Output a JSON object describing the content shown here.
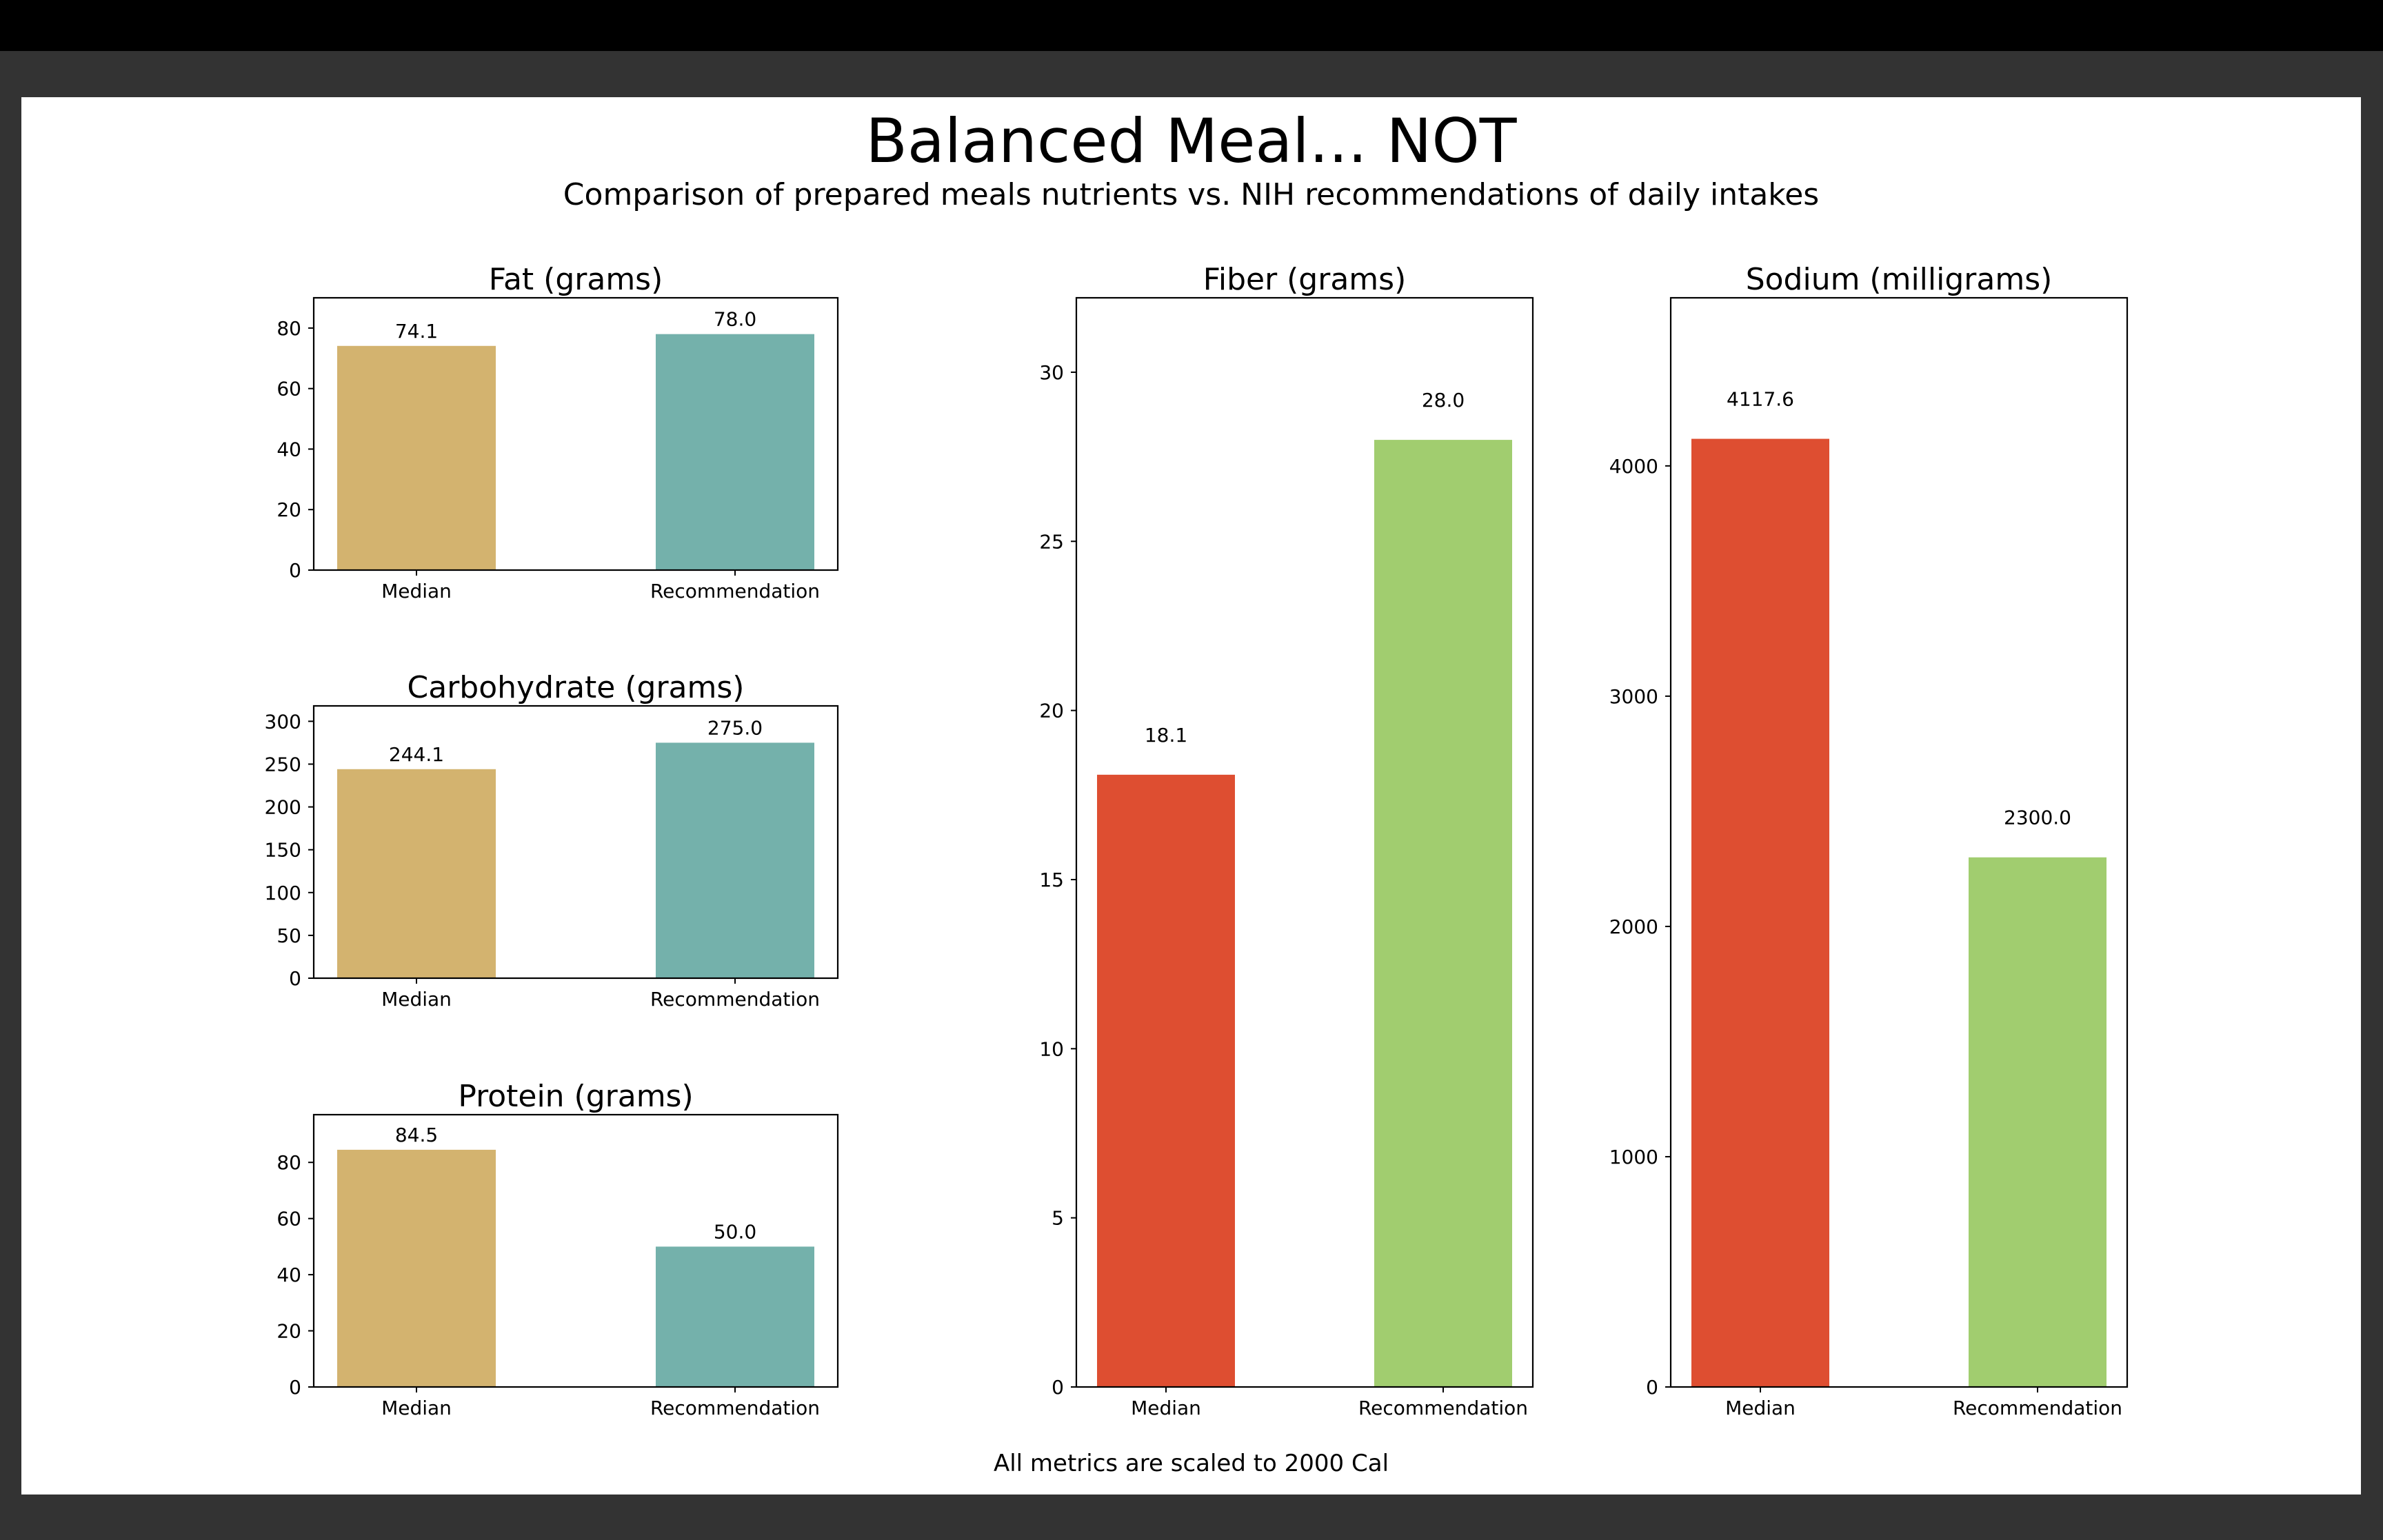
{
  "title": "Balanced Meal... NOT",
  "subtitle": "Comparison of prepared meals nutrients vs. NIH recommendations of daily intakes",
  "footer": "All metrics are scaled to 2000 Cal",
  "colors": {
    "small_median": "#d3b36f",
    "small_recommendation": "#74b1ab",
    "large_median": "#de4e31",
    "large_recommendation": "#a1cd6f"
  },
  "chart_data": [
    {
      "id": "fat",
      "type": "bar",
      "title": "Fat (grams)",
      "categories": [
        "Median",
        "Recommendation"
      ],
      "values": [
        74.1,
        78.0
      ],
      "value_labels": [
        "74.1",
        "78.0"
      ],
      "ylim": [
        0,
        90
      ],
      "yticks": [
        0,
        20,
        40,
        60,
        80
      ],
      "colors": [
        "#d3b36f",
        "#74b1ab"
      ]
    },
    {
      "id": "carb",
      "type": "bar",
      "title": "Carbohydrate (grams)",
      "categories": [
        "Median",
        "Recommendation"
      ],
      "values": [
        244.1,
        275.0
      ],
      "value_labels": [
        "244.1",
        "275.0"
      ],
      "ylim": [
        0,
        318
      ],
      "yticks": [
        0,
        50,
        100,
        150,
        200,
        250,
        300
      ],
      "colors": [
        "#d3b36f",
        "#74b1ab"
      ]
    },
    {
      "id": "protein",
      "type": "bar",
      "title": "Protein (grams)",
      "categories": [
        "Median",
        "Recommendation"
      ],
      "values": [
        84.5,
        50.0
      ],
      "value_labels": [
        "84.5",
        "50.0"
      ],
      "ylim": [
        0,
        97
      ],
      "yticks": [
        0,
        20,
        40,
        60,
        80
      ],
      "colors": [
        "#d3b36f",
        "#74b1ab"
      ]
    },
    {
      "id": "fiber",
      "type": "bar",
      "title": "Fiber (grams)",
      "categories": [
        "Median",
        "Recommendation"
      ],
      "values": [
        18.1,
        28.0
      ],
      "value_labels": [
        "18.1",
        "28.0"
      ],
      "ylim": [
        0,
        32.2
      ],
      "yticks": [
        0,
        5,
        10,
        15,
        20,
        25,
        30
      ],
      "colors": [
        "#de4e31",
        "#a1cd6f"
      ]
    },
    {
      "id": "sodium",
      "type": "bar",
      "title": "Sodium (milligrams)",
      "categories": [
        "Median",
        "Recommendation"
      ],
      "values": [
        4117.6,
        2300.0
      ],
      "value_labels": [
        "4117.6",
        "2300.0"
      ],
      "ylim": [
        0,
        4730
      ],
      "yticks": [
        0,
        1000,
        2000,
        3000,
        4000
      ],
      "colors": [
        "#de4e31",
        "#a1cd6f"
      ]
    }
  ]
}
